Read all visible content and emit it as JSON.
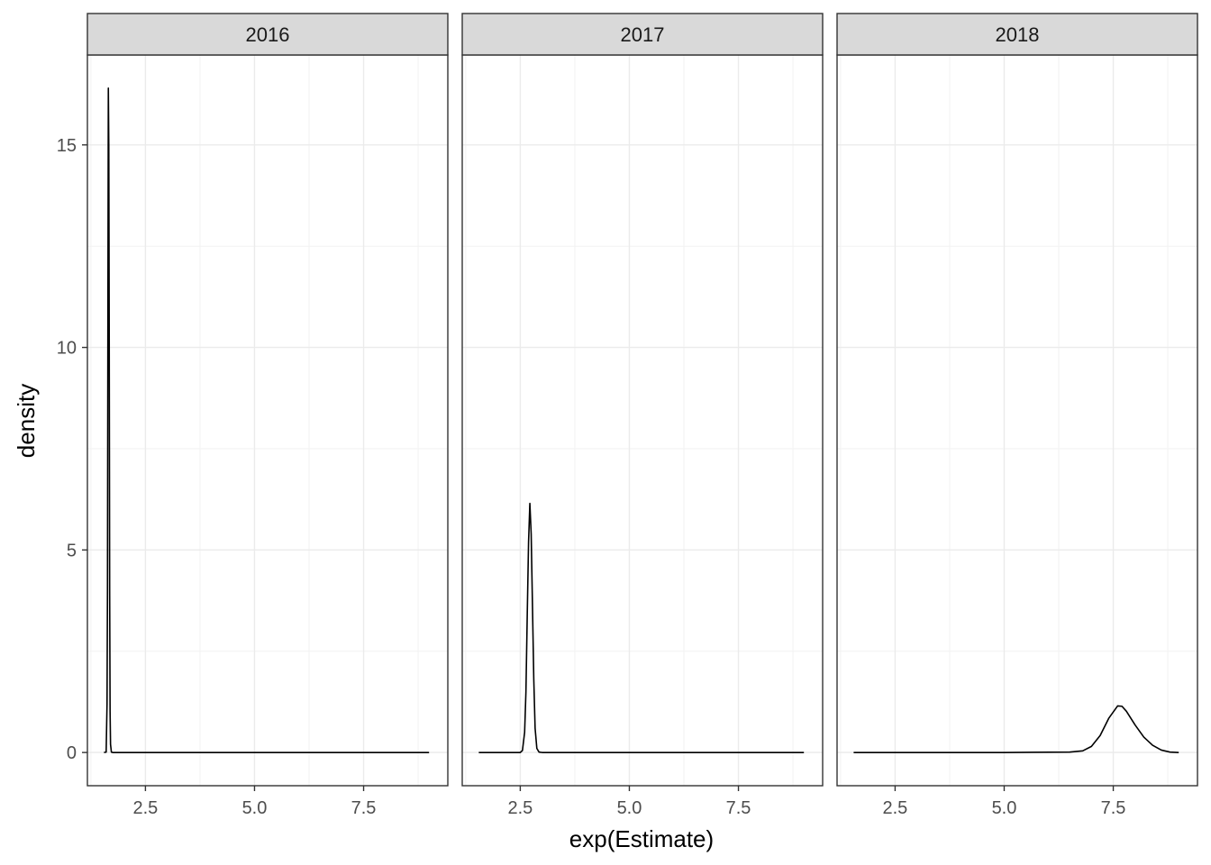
{
  "chart_data": {
    "type": "area",
    "facet_variable": "year",
    "xlabel": "exp(Estimate)",
    "ylabel": "density",
    "xlim": [
      1.17,
      9.43
    ],
    "ylim": [
      -0.82,
      17.22
    ],
    "x_ticks": [
      2.5,
      5.0,
      7.5
    ],
    "x_tick_labels": [
      "2.5",
      "5.0",
      "7.5"
    ],
    "y_ticks": [
      0,
      5,
      10,
      15
    ],
    "y_tick_labels": [
      "0",
      "5",
      "10",
      "15"
    ],
    "grid": true,
    "fill": "none",
    "line_color": "#000000",
    "panels": [
      {
        "label": "2016",
        "x": [
          1.55,
          1.6,
          1.62,
          1.63,
          1.64,
          1.65,
          1.66,
          1.67,
          1.68,
          1.69,
          1.7,
          1.72,
          1.75,
          2.0,
          3.0,
          4.0,
          5.0,
          6.0,
          7.0,
          8.0,
          9.0
        ],
        "y": [
          0,
          0.01,
          1.2,
          4.0,
          11.0,
          16.4,
          15.0,
          10.4,
          4.0,
          1.0,
          0.2,
          0.01,
          0,
          0,
          0,
          0,
          0,
          0,
          0,
          0,
          0
        ]
      },
      {
        "label": "2017",
        "x": [
          1.55,
          2.0,
          2.5,
          2.55,
          2.6,
          2.63,
          2.66,
          2.69,
          2.72,
          2.75,
          2.78,
          2.81,
          2.84,
          2.88,
          2.93,
          3.0,
          4.0,
          5.0,
          6.0,
          7.0,
          8.0,
          9.0
        ],
        "y": [
          0,
          0,
          0,
          0.05,
          0.5,
          1.5,
          3.4,
          5.2,
          6.15,
          5.4,
          3.6,
          1.8,
          0.6,
          0.1,
          0.01,
          0,
          0,
          0,
          0,
          0,
          0,
          0
        ]
      },
      {
        "label": "2018",
        "x": [
          1.55,
          3.0,
          5.0,
          6.5,
          6.8,
          7.0,
          7.2,
          7.4,
          7.6,
          7.7,
          7.8,
          8.0,
          8.2,
          8.4,
          8.6,
          8.8,
          9.0
        ],
        "y": [
          0,
          0,
          0,
          0.01,
          0.04,
          0.15,
          0.42,
          0.85,
          1.15,
          1.14,
          1.02,
          0.68,
          0.38,
          0.18,
          0.06,
          0.01,
          0
        ]
      }
    ]
  }
}
